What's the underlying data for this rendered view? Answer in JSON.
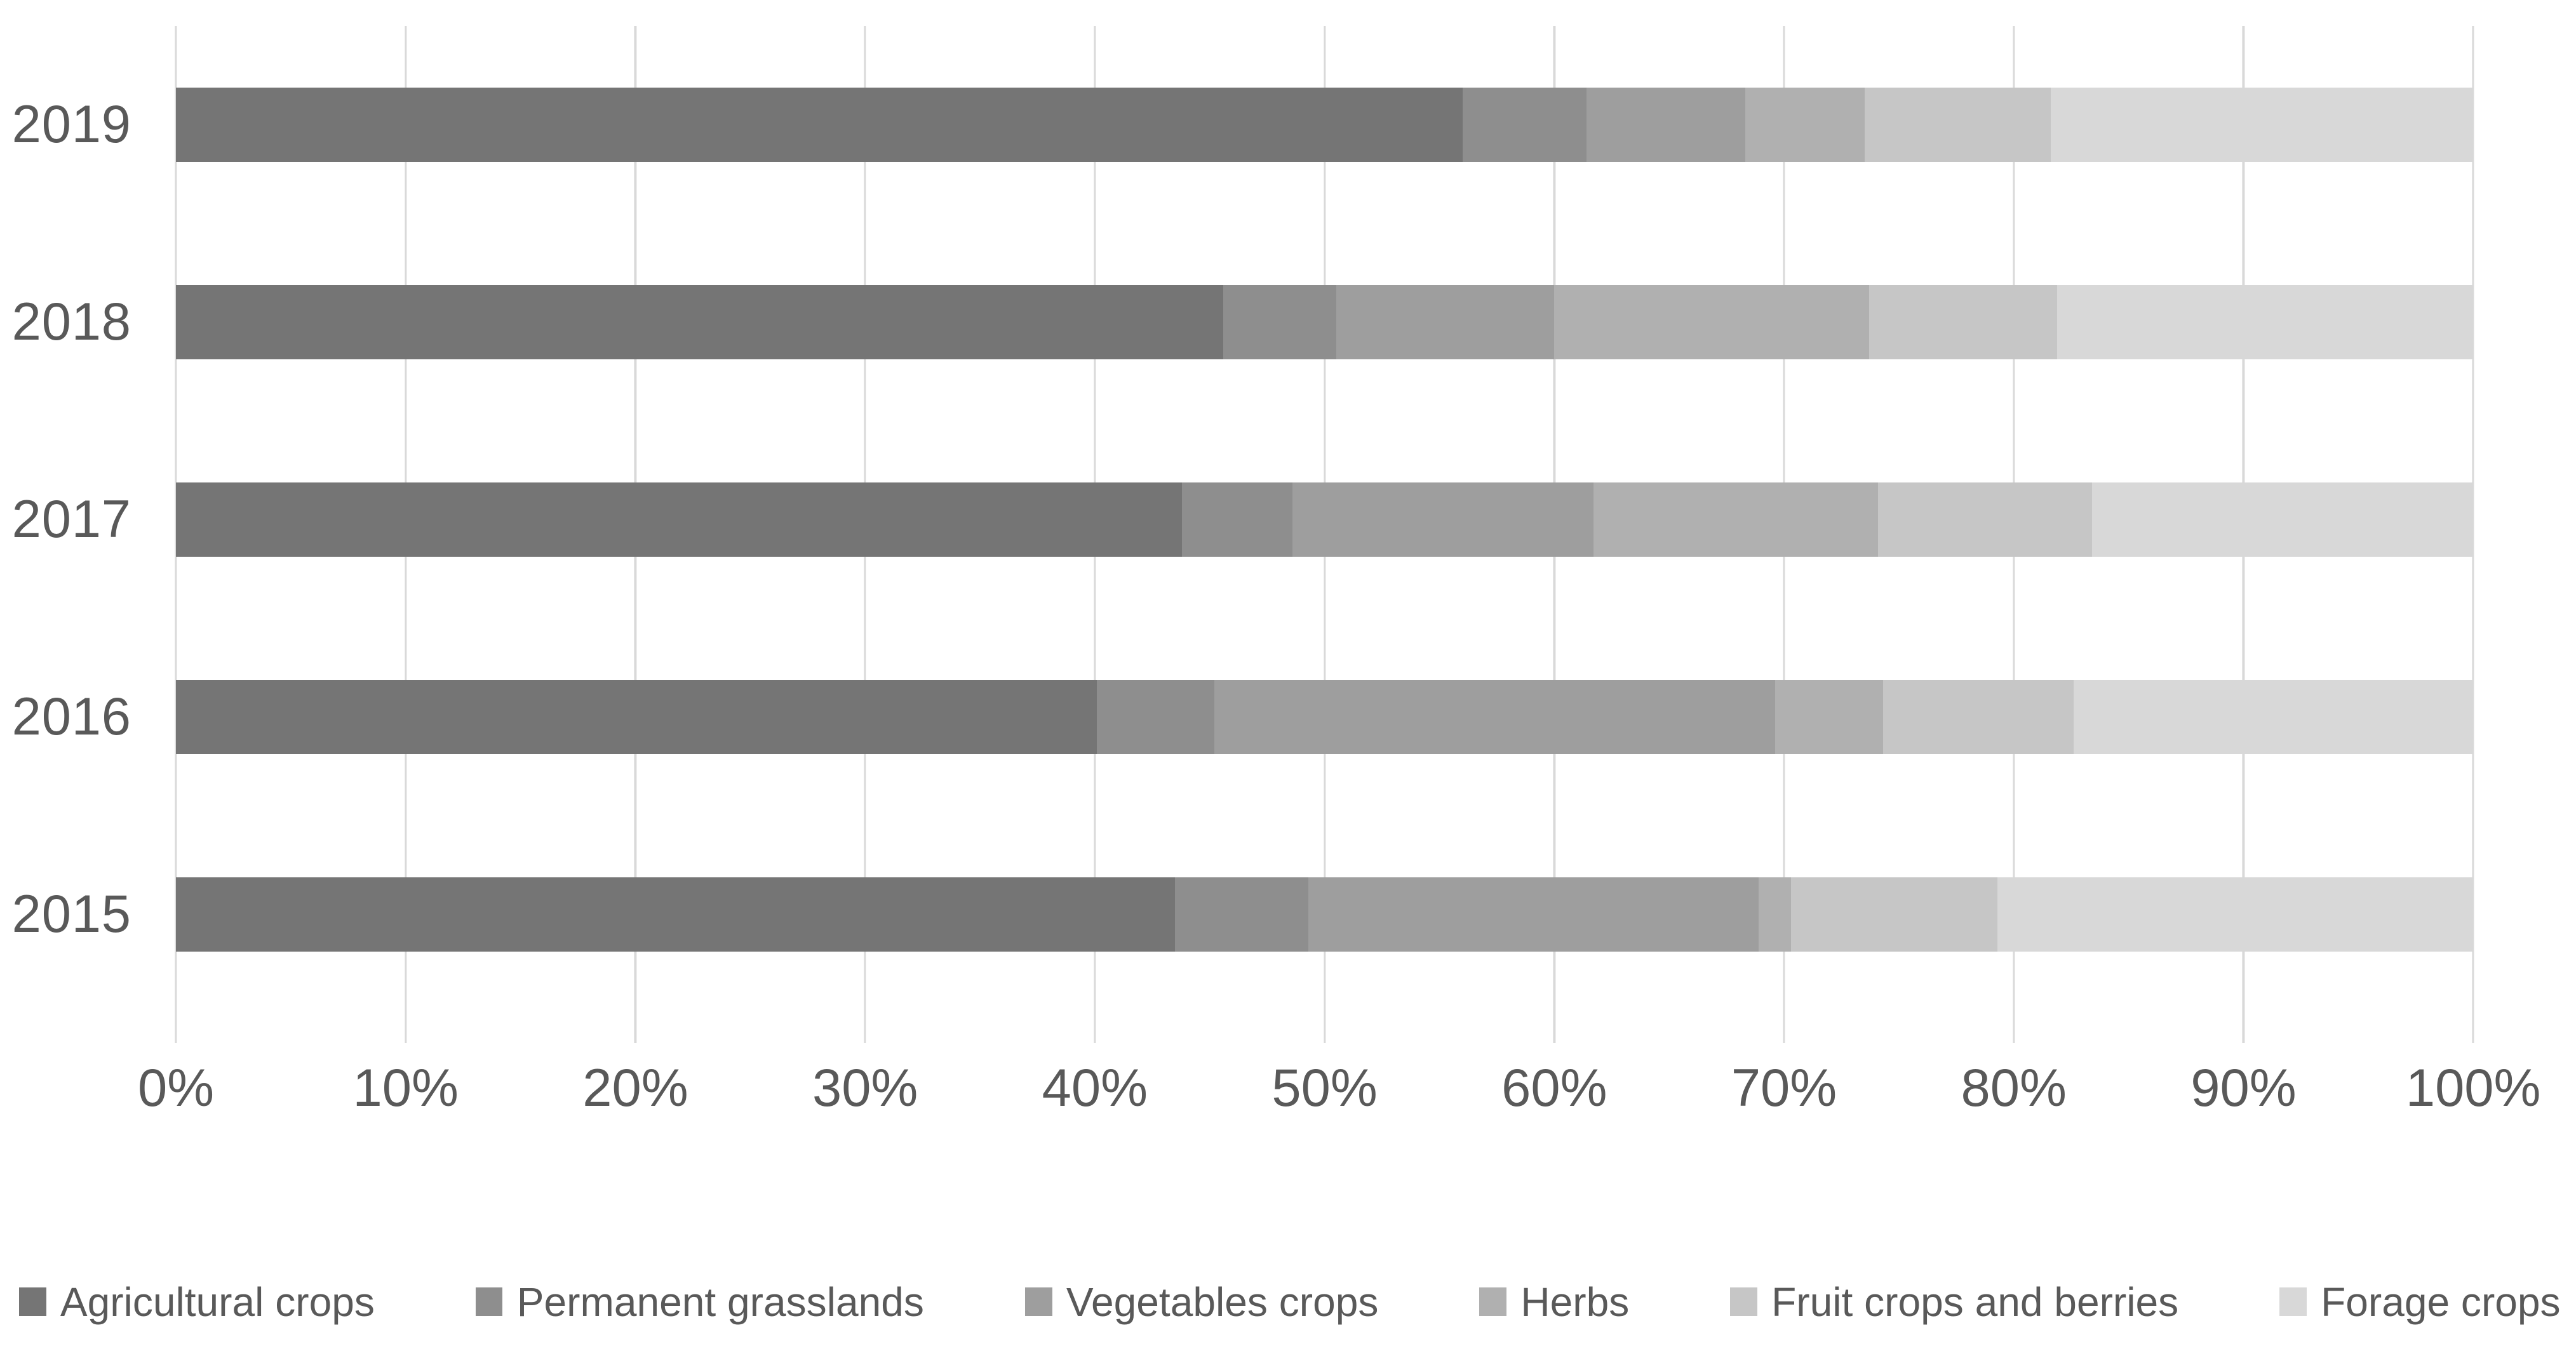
{
  "chart_data": {
    "type": "bar",
    "orientation": "horizontal",
    "stacked": true,
    "unit": "%",
    "title": "",
    "xlabel": "",
    "ylabel": "",
    "xlim": [
      0,
      100
    ],
    "x_ticks": [
      "0%",
      "10%",
      "20%",
      "30%",
      "40%",
      "50%",
      "60%",
      "70%",
      "80%",
      "90%",
      "100%"
    ],
    "grid": "vertical",
    "legend_position": "bottom",
    "categories": [
      "2019",
      "2018",
      "2017",
      "2016",
      "2015"
    ],
    "series": [
      {
        "name": "Agricultural crops",
        "color": "#757575",
        "values": [
          56.0,
          45.6,
          43.8,
          40.1,
          43.5
        ]
      },
      {
        "name": "Permanent grasslands",
        "color": "#8E8E8E",
        "values": [
          5.4,
          4.9,
          4.8,
          5.1,
          5.8
        ]
      },
      {
        "name": "Vegetables crops",
        "color": "#9E9E9E",
        "values": [
          6.9,
          9.5,
          13.1,
          24.4,
          19.6
        ]
      },
      {
        "name": "Herbs",
        "color": "#B0B0B0",
        "values": [
          5.2,
          13.7,
          12.4,
          4.7,
          1.4
        ]
      },
      {
        "name": "Fruit crops and berries",
        "color": "#C6C6C6",
        "values": [
          8.1,
          8.2,
          9.3,
          8.3,
          9.0
        ]
      },
      {
        "name": "Forage crops",
        "color": "#D8D8D8",
        "values": [
          18.4,
          18.1,
          16.6,
          17.4,
          20.7
        ]
      }
    ]
  },
  "colors": {
    "axis_text": "#595959",
    "gridline": "#D9D9D9",
    "background": "#FFFFFF"
  }
}
